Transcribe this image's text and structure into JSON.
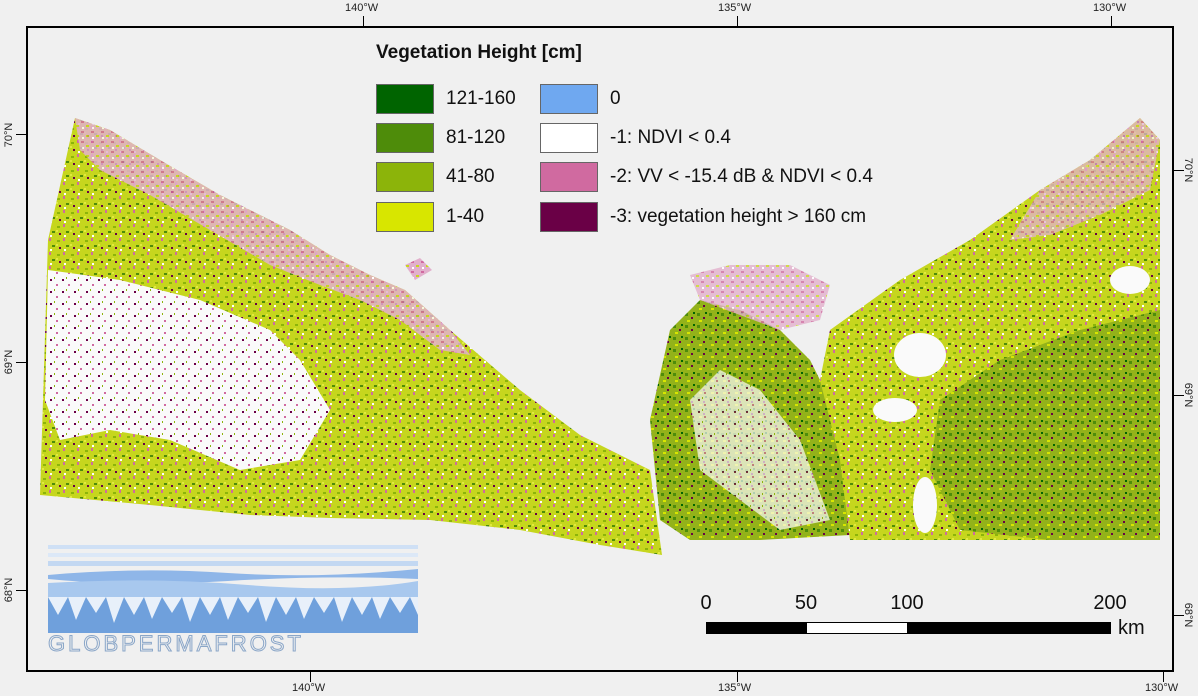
{
  "graticule": {
    "top": [
      "140°W",
      "135°W",
      "130°W"
    ],
    "bottom": [
      "140°W",
      "135°W",
      "130°W"
    ],
    "left": [
      "70°N",
      "69°N",
      "68°N"
    ],
    "right": [
      "70°N",
      "69°N",
      "68°N"
    ]
  },
  "legend": {
    "title": "Vegetation Height [cm]",
    "items": [
      {
        "label": "121-160",
        "color": "#006400"
      },
      {
        "label": "81-120",
        "color": "#4e8c0a"
      },
      {
        "label": "41-80",
        "color": "#8cb40a"
      },
      {
        "label": "1-40",
        "color": "#d8e600"
      },
      {
        "label": "0",
        "color": "#6fa8f0"
      },
      {
        "label": "-1: NDVI < 0.4",
        "color": "#ffffff"
      },
      {
        "label": "-2:  VV < -15.4 dB & NDVI < 0.4",
        "color": "#d06aa0"
      },
      {
        "label": "-3: vegetation height > 160 cm",
        "color": "#6a0046"
      }
    ]
  },
  "scalebar": {
    "labels": [
      "0",
      "50",
      "100",
      "200"
    ],
    "unit": "km"
  },
  "logo": {
    "text": "GLOBPERMAFROST"
  },
  "colors": {
    "background": "#f0f0f0",
    "land_main": "#c8d820",
    "land_dark": "#7aa010",
    "tundra_pink": "#d06aa0",
    "water_white": "#ffffff"
  }
}
